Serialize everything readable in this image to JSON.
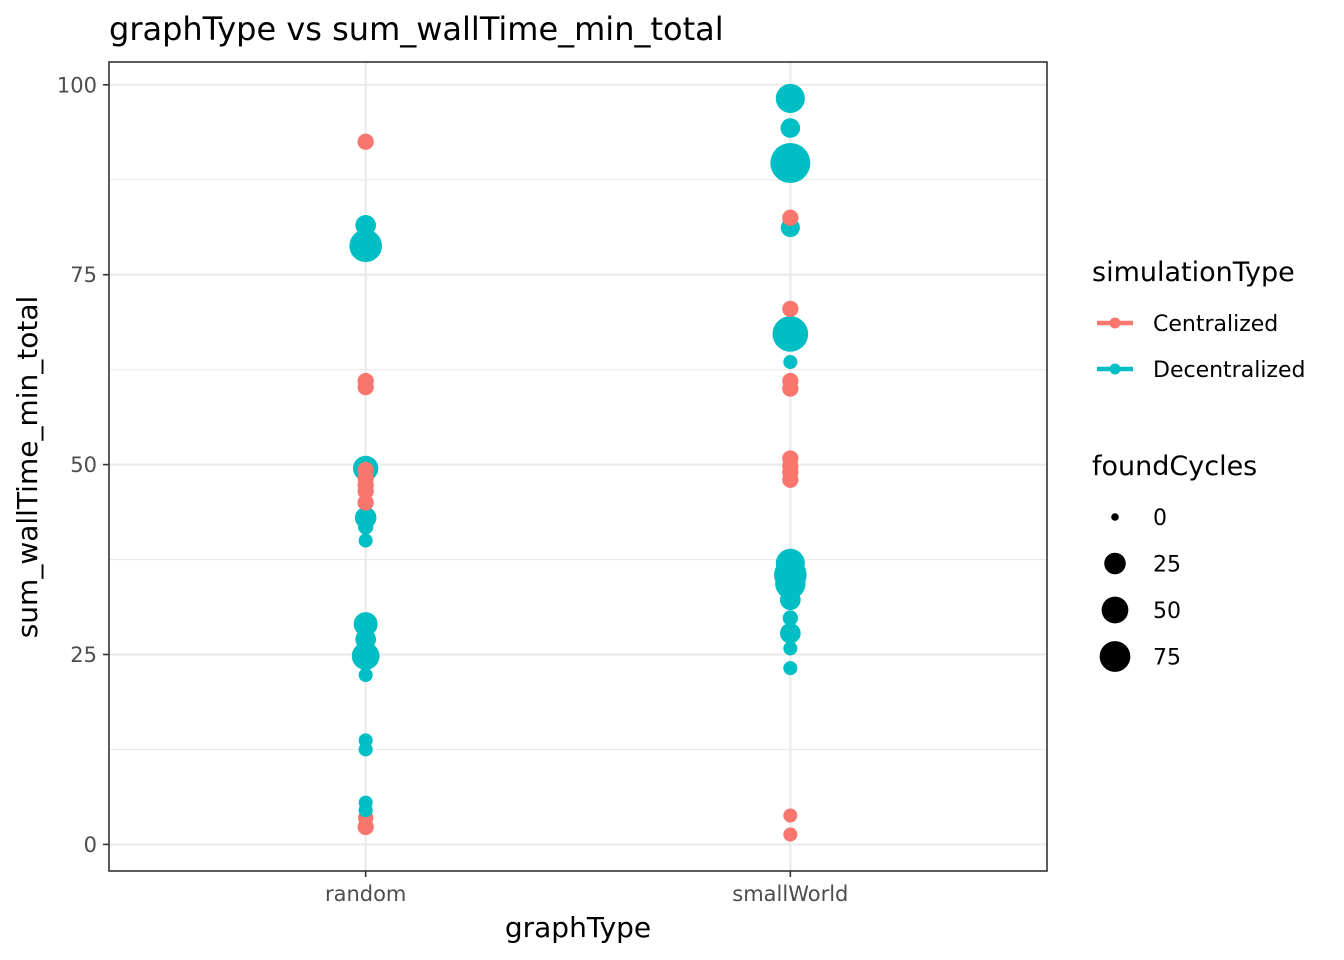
{
  "chart_data": {
    "type": "scatter",
    "title": "graphType  vs  sum_wallTime_min_total",
    "xlabel": "graphType",
    "ylabel": "sum_wallTime_min_total",
    "categories": [
      "random",
      "smallWorld"
    ],
    "ylim": [
      -3.5,
      103
    ],
    "yticks": [
      0,
      25,
      50,
      75,
      100
    ],
    "grid": true,
    "legend_position": "right",
    "colors": {
      "Centralized": "#F8766D",
      "Decentralized": "#00BFC4"
    },
    "series": [
      {
        "name": "Centralized",
        "points": [
          {
            "x": "random",
            "y": 92.5,
            "foundCycles": 3
          },
          {
            "x": "random",
            "y": 61.0,
            "foundCycles": 3
          },
          {
            "x": "random",
            "y": 60.2,
            "foundCycles": 3
          },
          {
            "x": "random",
            "y": 49.3,
            "foundCycles": 3
          },
          {
            "x": "random",
            "y": 48.2,
            "foundCycles": 3
          },
          {
            "x": "random",
            "y": 47.3,
            "foundCycles": 3
          },
          {
            "x": "random",
            "y": 46.5,
            "foundCycles": 3
          },
          {
            "x": "random",
            "y": 45.0,
            "foundCycles": 3
          },
          {
            "x": "random",
            "y": 3.5,
            "foundCycles": 2
          },
          {
            "x": "random",
            "y": 2.3,
            "foundCycles": 3
          },
          {
            "x": "smallWorld",
            "y": 82.5,
            "foundCycles": 3
          },
          {
            "x": "smallWorld",
            "y": 70.5,
            "foundCycles": 3
          },
          {
            "x": "smallWorld",
            "y": 61.0,
            "foundCycles": 3
          },
          {
            "x": "smallWorld",
            "y": 60.0,
            "foundCycles": 3
          },
          {
            "x": "smallWorld",
            "y": 50.8,
            "foundCycles": 3
          },
          {
            "x": "smallWorld",
            "y": 49.8,
            "foundCycles": 3
          },
          {
            "x": "smallWorld",
            "y": 49.0,
            "foundCycles": 3
          },
          {
            "x": "smallWorld",
            "y": 48.0,
            "foundCycles": 3
          },
          {
            "x": "smallWorld",
            "y": 3.8,
            "foundCycles": 1
          },
          {
            "x": "smallWorld",
            "y": 1.3,
            "foundCycles": 1
          }
        ]
      },
      {
        "name": "Decentralized",
        "points": [
          {
            "x": "random",
            "y": 81.5,
            "foundCycles": 10
          },
          {
            "x": "random",
            "y": 78.8,
            "foundCycles": 50
          },
          {
            "x": "random",
            "y": 49.5,
            "foundCycles": 22
          },
          {
            "x": "random",
            "y": 43.0,
            "foundCycles": 12
          },
          {
            "x": "random",
            "y": 41.8,
            "foundCycles": 2
          },
          {
            "x": "random",
            "y": 40.0,
            "foundCycles": 1
          },
          {
            "x": "random",
            "y": 29.0,
            "foundCycles": 18
          },
          {
            "x": "random",
            "y": 27.0,
            "foundCycles": 10
          },
          {
            "x": "random",
            "y": 24.8,
            "foundCycles": 30
          },
          {
            "x": "random",
            "y": 22.3,
            "foundCycles": 1
          },
          {
            "x": "random",
            "y": 13.7,
            "foundCycles": 1
          },
          {
            "x": "random",
            "y": 12.5,
            "foundCycles": 1
          },
          {
            "x": "random",
            "y": 5.5,
            "foundCycles": 1
          },
          {
            "x": "random",
            "y": 4.5,
            "foundCycles": 1
          },
          {
            "x": "smallWorld",
            "y": 98.2,
            "foundCycles": 35
          },
          {
            "x": "smallWorld",
            "y": 94.3,
            "foundCycles": 8
          },
          {
            "x": "smallWorld",
            "y": 89.7,
            "foundCycles": 90
          },
          {
            "x": "smallWorld",
            "y": 81.2,
            "foundCycles": 7
          },
          {
            "x": "smallWorld",
            "y": 67.2,
            "foundCycles": 65
          },
          {
            "x": "smallWorld",
            "y": 63.5,
            "foundCycles": 1
          },
          {
            "x": "smallWorld",
            "y": 37.0,
            "foundCycles": 35
          },
          {
            "x": "smallWorld",
            "y": 35.5,
            "foundCycles": 50
          },
          {
            "x": "smallWorld",
            "y": 34.3,
            "foundCycles": 40
          },
          {
            "x": "smallWorld",
            "y": 32.2,
            "foundCycles": 10
          },
          {
            "x": "smallWorld",
            "y": 29.8,
            "foundCycles": 2
          },
          {
            "x": "smallWorld",
            "y": 27.8,
            "foundCycles": 10
          },
          {
            "x": "smallWorld",
            "y": 25.8,
            "foundCycles": 1
          },
          {
            "x": "smallWorld",
            "y": 23.2,
            "foundCycles": 1
          }
        ]
      }
    ],
    "legend": {
      "color_title": "simulationType",
      "color_entries": [
        "Centralized",
        "Decentralized"
      ],
      "size_title": "foundCycles",
      "size_entries": [
        0,
        25,
        50,
        75
      ]
    }
  }
}
